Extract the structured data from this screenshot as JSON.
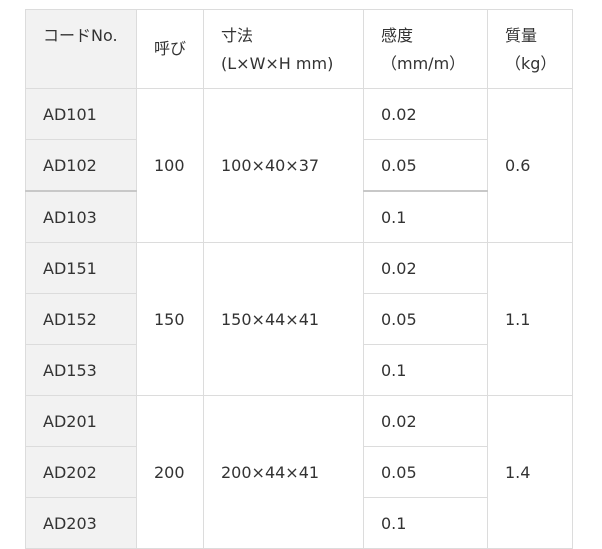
{
  "headers": {
    "code": "コードNo.",
    "nominal": "呼び",
    "dims_line1": "寸法",
    "dims_line2": "(L×W×H mm)",
    "sens_line1": "感度",
    "sens_line2": "（mm/m）",
    "mass_line1": "質量",
    "mass_line2": "（kg）"
  },
  "groups": [
    {
      "nominal": "100",
      "dims": "100×40×37",
      "mass": "0.6",
      "rows": [
        {
          "code": "AD101",
          "sens": "0.02"
        },
        {
          "code": "AD102",
          "sens": "0.05"
        },
        {
          "code": "AD103",
          "sens": "0.1"
        }
      ]
    },
    {
      "nominal": "150",
      "dims": "150×44×41",
      "mass": "1.1",
      "rows": [
        {
          "code": "AD151",
          "sens": "0.02"
        },
        {
          "code": "AD152",
          "sens": "0.05"
        },
        {
          "code": "AD153",
          "sens": "0.1"
        }
      ]
    },
    {
      "nominal": "200",
      "dims": "200×44×41",
      "mass": "1.4",
      "rows": [
        {
          "code": "AD201",
          "sens": "0.02"
        },
        {
          "code": "AD202",
          "sens": "0.05"
        },
        {
          "code": "AD203",
          "sens": "0.1"
        }
      ]
    }
  ]
}
